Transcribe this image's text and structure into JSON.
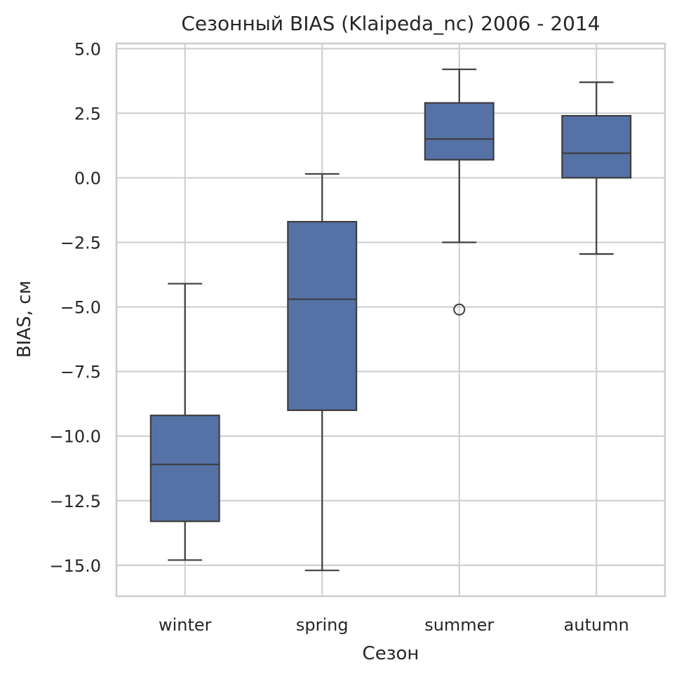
{
  "chart_data": {
    "type": "box",
    "title": "Сезонный BIAS (Klaipeda_nc) 2006 - 2014",
    "xlabel": "Сезон",
    "ylabel": "BIAS, см",
    "categories": [
      "winter",
      "spring",
      "summer",
      "autumn"
    ],
    "ylim": [
      -16.2,
      5.2
    ],
    "yticks": [
      5.0,
      2.5,
      0.0,
      -2.5,
      -5.0,
      -7.5,
      -10.0,
      -12.5,
      -15.0
    ],
    "ytick_labels": [
      "5.0",
      "2.5",
      "0.0",
      "−2.5",
      "−5.0",
      "−7.5",
      "−10.0",
      "−12.5",
      "−15.0"
    ],
    "grid": true,
    "boxes": [
      {
        "category": "winter",
        "whislo": -14.8,
        "q1": -13.3,
        "med": -11.1,
        "q3": -9.2,
        "whishi": -4.1,
        "fliers": []
      },
      {
        "category": "spring",
        "whislo": -15.2,
        "q1": -9.0,
        "med": -4.7,
        "q3": -1.7,
        "whishi": 0.15,
        "fliers": []
      },
      {
        "category": "summer",
        "whislo": -2.5,
        "q1": 0.7,
        "med": 1.5,
        "q3": 2.9,
        "whishi": 4.2,
        "fliers": [
          -5.1
        ]
      },
      {
        "category": "autumn",
        "whislo": -2.95,
        "q1": 0.0,
        "med": 0.95,
        "q3": 2.4,
        "whishi": 3.7,
        "fliers": []
      }
    ],
    "colors": {
      "box_fill": "#5572a7",
      "box_edge": "#3d3d3d",
      "grid": "#cccccc",
      "axes_edge": "#cccccc",
      "text": "#262626"
    }
  }
}
